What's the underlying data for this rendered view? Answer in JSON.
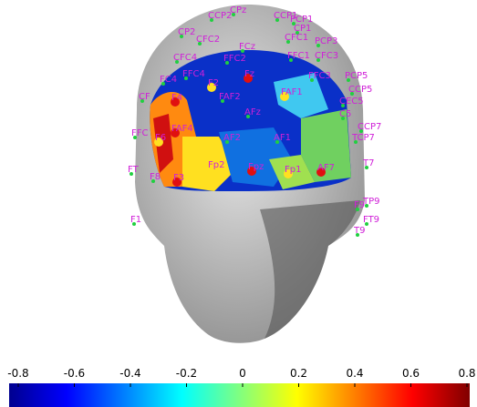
{
  "electrodes": [
    "CPz",
    "CCP2",
    "CCP1",
    "PCP1",
    "CP1",
    "CP2",
    "CFC2",
    "CFC1",
    "FCz",
    "FFC2",
    "FFC1",
    "PCP3",
    "CFC3",
    "FFC3",
    "FFC4",
    "FC4",
    "CFC4",
    "PCP5",
    "CCP5",
    "CEC5",
    "C5",
    "CCP7",
    "TCP7",
    "Fz",
    "F2",
    "FAF2",
    "FAF1",
    "AFz",
    "F4",
    "FAF4",
    "AF2",
    "AF1",
    "F6",
    "Fp2",
    "Fpz",
    "Fp1",
    "AF7",
    "F8",
    "F3",
    "T7",
    "TP9",
    "F9",
    "FT9",
    "T9",
    "CF",
    "FFC",
    "FT",
    "F1"
  ],
  "colorbar": {
    "lim": [
      -0.8,
      0.8
    ],
    "ticks": [
      -0.8,
      -0.6,
      -0.4,
      -0.2,
      0,
      0.2,
      0.4,
      0.6,
      0.8
    ]
  }
}
